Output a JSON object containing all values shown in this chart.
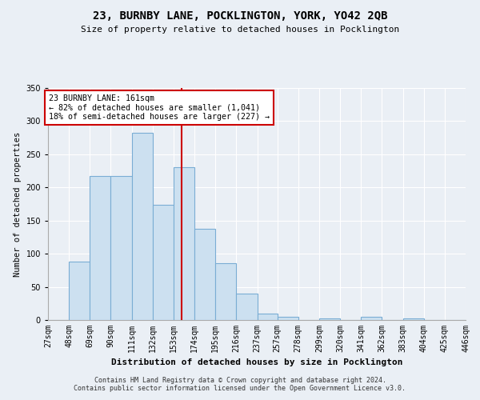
{
  "title": "23, BURNBY LANE, POCKLINGTON, YORK, YO42 2QB",
  "subtitle": "Size of property relative to detached houses in Pocklington",
  "xlabel": "Distribution of detached houses by size in Pocklington",
  "ylabel": "Number of detached properties",
  "bar_color": "#cce0f0",
  "bar_edge_color": "#7aadd4",
  "vline_x": 161,
  "vline_color": "#cc0000",
  "annotation_title": "23 BURNBY LANE: 161sqm",
  "annotation_line1": "← 82% of detached houses are smaller (1,041)",
  "annotation_line2": "18% of semi-detached houses are larger (227) →",
  "annotation_box_color": "white",
  "annotation_box_edge": "#cc0000",
  "bin_edges": [
    27,
    48,
    69,
    90,
    111,
    132,
    153,
    174,
    195,
    216,
    237,
    257,
    278,
    299,
    320,
    341,
    362,
    383,
    404,
    425,
    446
  ],
  "bin_labels": [
    "27sqm",
    "48sqm",
    "69sqm",
    "90sqm",
    "111sqm",
    "132sqm",
    "153sqm",
    "174sqm",
    "195sqm",
    "216sqm",
    "237sqm",
    "257sqm",
    "278sqm",
    "299sqm",
    "320sqm",
    "341sqm",
    "362sqm",
    "383sqm",
    "404sqm",
    "425sqm",
    "446sqm"
  ],
  "bar_heights": [
    0,
    88,
    217,
    217,
    283,
    174,
    230,
    138,
    86,
    40,
    10,
    5,
    0,
    2,
    0,
    5,
    0,
    2,
    0,
    0
  ],
  "ylim": [
    0,
    350
  ],
  "yticks": [
    0,
    50,
    100,
    150,
    200,
    250,
    300,
    350
  ],
  "footer_line1": "Contains HM Land Registry data © Crown copyright and database right 2024.",
  "footer_line2": "Contains public sector information licensed under the Open Government Licence v3.0.",
  "bg_color": "#eaeff5",
  "plot_bg_color": "#eaeff5",
  "grid_color": "#ffffff",
  "title_fontsize": 10,
  "subtitle_fontsize": 8,
  "ylabel_fontsize": 7.5,
  "xlabel_fontsize": 8,
  "tick_fontsize": 7,
  "footer_fontsize": 6
}
